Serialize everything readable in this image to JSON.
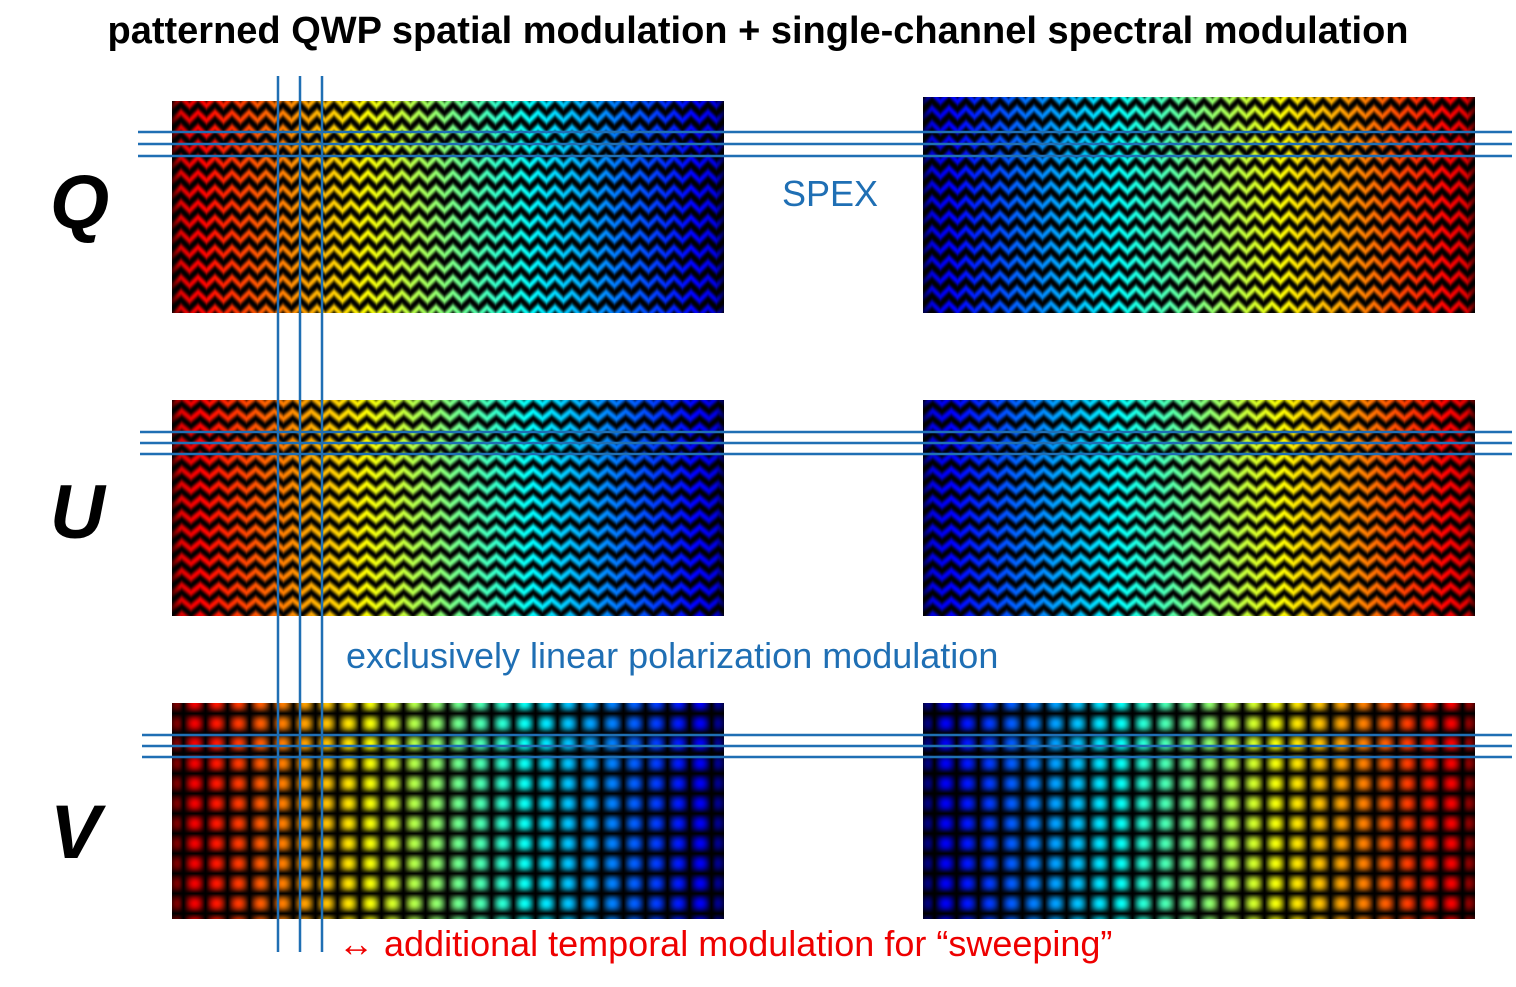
{
  "title": "patterned QWP spatial modulation + single-channel spectral modulation",
  "rows": [
    {
      "label": "Q",
      "pattern": "zigzag-sharp"
    },
    {
      "label": "U",
      "pattern": "zigzag-soft"
    },
    {
      "label": "V",
      "pattern": "checker"
    }
  ],
  "annotations": {
    "spex": "SPEX",
    "linear": "exclusively linear polarization modulation",
    "temporal_arrow": "↔",
    "temporal": "additional temporal modulation for “sweeping”"
  },
  "colors": {
    "line_blue": "#1f6fb4",
    "annotation_blue": "#1f6fb4",
    "annotation_red": "#ee0000",
    "text": "#000000"
  }
}
